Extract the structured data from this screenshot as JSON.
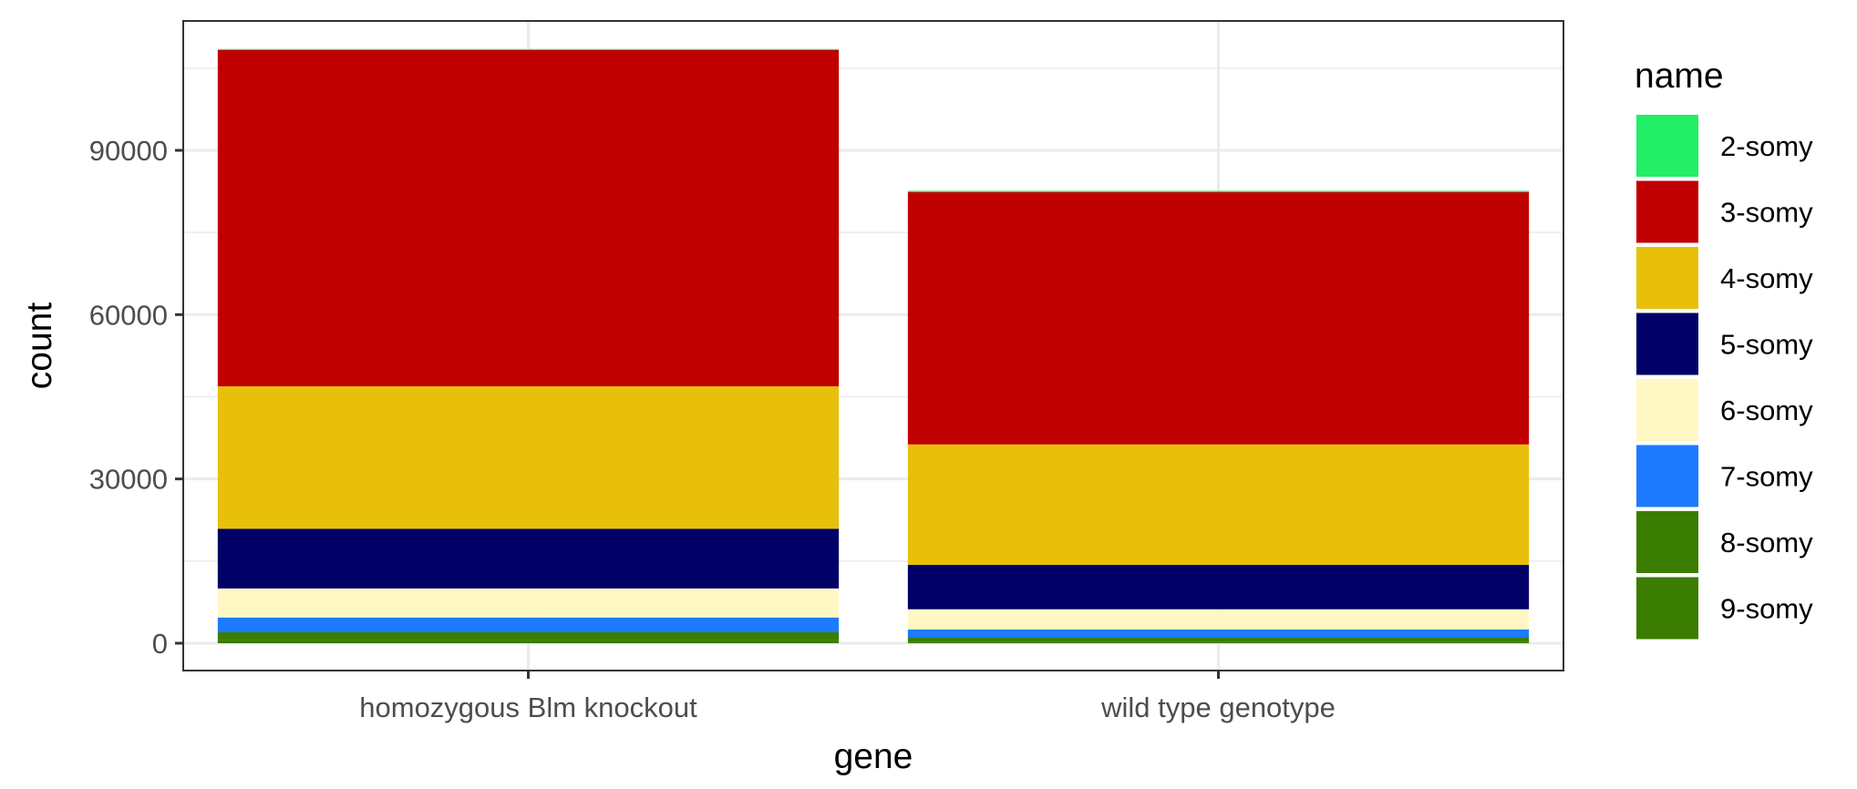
{
  "chart_data": {
    "type": "bar",
    "stacked": true,
    "categories": [
      "homozygous Blm knockout",
      "wild type genotype"
    ],
    "xlabel": "gene",
    "ylabel": "count",
    "ylim": [
      0,
      110000
    ],
    "yticks": [
      0,
      30000,
      60000,
      90000
    ],
    "ytick_labels": [
      "0",
      "30000",
      "60000",
      "90000"
    ],
    "grid": true,
    "legend_title": "name",
    "legend_position": "right",
    "series": [
      {
        "name": "9-somy",
        "color": "#3a7d00",
        "values": [
          600,
          300
        ]
      },
      {
        "name": "8-somy",
        "color": "#3a7d00",
        "values": [
          1400,
          700
        ]
      },
      {
        "name": "7-somy",
        "color": "#1c7bff",
        "values": [
          2700,
          1500
        ]
      },
      {
        "name": "6-somy",
        "color": "#fff8c4",
        "values": [
          5300,
          3700
        ]
      },
      {
        "name": "5-somy",
        "color": "#000066",
        "values": [
          10900,
          8100
        ]
      },
      {
        "name": "4-somy",
        "color": "#e8c00a",
        "values": [
          26000,
          22000
        ]
      },
      {
        "name": "3-somy",
        "color": "#c00000",
        "values": [
          61400,
          46100
        ]
      },
      {
        "name": "2-somy",
        "color": "#22ee66",
        "values": [
          200,
          200
        ]
      }
    ],
    "legend_order": [
      "2-somy",
      "3-somy",
      "4-somy",
      "5-somy",
      "6-somy",
      "7-somy",
      "8-somy",
      "9-somy"
    ]
  }
}
